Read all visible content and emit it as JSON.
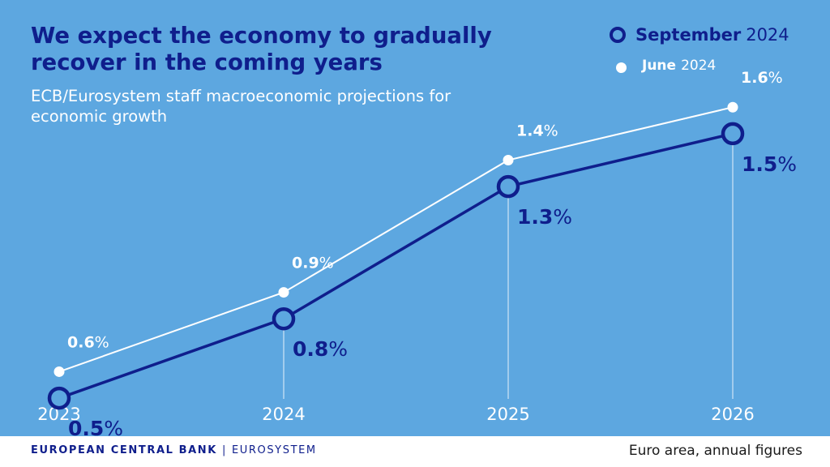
{
  "colors": {
    "background": "#5da7e0",
    "primary": "#0f1e8c",
    "secondary": "#ffffff",
    "gridline": "#e6f0fa"
  },
  "chart_data": {
    "type": "line",
    "title": "We expect the economy to gradually recover in the coming years",
    "subtitle": "ECB/Eurosystem staff macroeconomic projections for economic growth",
    "categories": [
      "2023",
      "2024",
      "2025",
      "2026"
    ],
    "unit": "%",
    "ylim": [
      0.35,
      1.8
    ],
    "grid": false,
    "legend_position": "top-right",
    "series": [
      {
        "name": "September",
        "year_label": "2024",
        "marker": "ring",
        "values": [
          0.5,
          0.8,
          1.3,
          1.5
        ],
        "labels": [
          "0.5",
          "0.8",
          "1.3",
          "1.5"
        ]
      },
      {
        "name": "June",
        "year_label": "2024",
        "marker": "dot",
        "values": [
          0.6,
          0.9,
          1.4,
          1.6
        ],
        "labels": [
          "0.6",
          "0.9",
          "1.4",
          "1.6"
        ]
      }
    ]
  },
  "footer": {
    "brand": "EUROPEAN CENTRAL BANK",
    "separator": "|",
    "brand_sub": "EUROSYSTEM",
    "note": "Euro area, annual figures"
  }
}
